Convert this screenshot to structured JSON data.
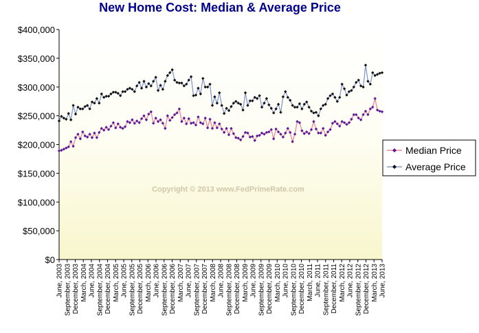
{
  "chart_data": {
    "type": "line",
    "title": "New Home Cost: Median & Average Price",
    "watermark": "Copyright © 2013 www.FedPrimeRate.com",
    "ylim": [
      0,
      400000
    ],
    "y_ticks": [
      "$0",
      "$50,000",
      "$100,000",
      "$150,000",
      "$200,000",
      "$250,000",
      "$300,000",
      "$350,000",
      "$400,000"
    ],
    "grid": false,
    "legend_position": "right",
    "x_ticks": [
      "June, 2003",
      "September, 2003",
      "December, 2003",
      "March, 2004",
      "June, 2004",
      "September, 2004",
      "December, 2004",
      "March, 2005",
      "June, 2005",
      "September, 2005",
      "December, 2005",
      "March, 2006",
      "June, 2006",
      "September, 2006",
      "December, 2006",
      "March, 2007",
      "June, 2007",
      "September, 2007",
      "December, 2007",
      "March, 2008",
      "June, 2008",
      "September, 2008",
      "December, 2008",
      "March, 2009",
      "June, 2009",
      "September, 2009",
      "December, 2009",
      "March, 2010",
      "June, 2010",
      "September, 2010",
      "December, 2010",
      "March, 2011",
      "June, 2011",
      "September, 2011",
      "December, 2011",
      "March, 2012",
      "June, 2012",
      "September, 2012",
      "December, 2012",
      "March, 2013",
      "June, 2013"
    ],
    "series": [
      {
        "name": "Median Price",
        "line_color": "#e8889a",
        "marker_color": "#5a189a",
        "values": [
          189000,
          190000,
          192000,
          194000,
          196000,
          205000,
          197000,
          212000,
          218000,
          210000,
          222000,
          215000,
          213000,
          218000,
          212000,
          220000,
          212000,
          221000,
          228000,
          225000,
          230000,
          226000,
          232000,
          238000,
          229000,
          236000,
          230000,
          228000,
          231000,
          240000,
          238000,
          243000,
          237000,
          241000,
          238000,
          245000,
          250000,
          243000,
          253000,
          257000,
          237000,
          246000,
          240000,
          243000,
          237000,
          228000,
          250000,
          242000,
          247000,
          252000,
          255000,
          262000,
          240000,
          246000,
          236000,
          245000,
          237000,
          238000,
          234000,
          248000,
          238000,
          236000,
          246000,
          229000,
          244000,
          228000,
          238000,
          229000,
          236000,
          227000,
          221000,
          228000,
          217000,
          228000,
          219000,
          212000,
          211000,
          208000,
          214000,
          221000,
          220000,
          213000,
          214000,
          207000,
          215000,
          216000,
          220000,
          218000,
          221000,
          222000,
          226000,
          210000,
          227000,
          222000,
          218000,
          213000,
          220000,
          228000,
          221000,
          205000,
          218000,
          240000,
          238000,
          224000,
          219000,
          222000,
          219000,
          226000,
          240000,
          227000,
          220000,
          220000,
          228000,
          216000,
          222000,
          226000,
          237000,
          240000,
          236000,
          232000,
          240000,
          238000,
          235000,
          238000,
          244000,
          252000,
          252000,
          246000,
          243000,
          252000,
          258000,
          252000,
          262000,
          265000,
          280000,
          260000,
          258000,
          257000
        ]
      },
      {
        "name": "Average Price",
        "line_color": "#8899cc",
        "marker_color": "#111111",
        "values": [
          241000,
          249000,
          246000,
          244000,
          254000,
          243000,
          268000,
          253000,
          265000,
          262000,
          262000,
          266000,
          268000,
          262000,
          274000,
          272000,
          280000,
          272000,
          288000,
          282000,
          284000,
          284000,
          288000,
          291000,
          291000,
          289000,
          285000,
          292000,
          292000,
          296000,
          298000,
          296000,
          292000,
          302000,
          308000,
          298000,
          310000,
          300000,
          306000,
          302000,
          310000,
          317000,
          294000,
          303000,
          296000,
          310000,
          320000,
          325000,
          330000,
          312000,
          308000,
          307000,
          307000,
          302000,
          305000,
          312000,
          318000,
          285000,
          286000,
          298000,
          288000,
          315000,
          300000,
          300000,
          305000,
          268000,
          283000,
          272000,
          290000,
          268000,
          254000,
          263000,
          259000,
          266000,
          272000,
          275000,
          272000,
          270000,
          260000,
          290000,
          268000,
          276000,
          276000,
          282000,
          280000,
          285000,
          265000,
          272000,
          280000,
          269000,
          263000,
          255000,
          262000,
          270000,
          256000,
          283000,
          292000,
          282000,
          277000,
          268000,
          265000,
          265000,
          271000,
          262000,
          270000,
          274000,
          265000,
          258000,
          255000,
          256000,
          250000,
          262000,
          268000,
          270000,
          280000,
          285000,
          288000,
          282000,
          275000,
          282000,
          305000,
          297000,
          286000,
          292000,
          294000,
          300000,
          308000,
          312000,
          302000,
          300000,
          338000,
          310000,
          305000,
          325000,
          320000,
          322000,
          324000,
          325000
        ]
      }
    ]
  }
}
